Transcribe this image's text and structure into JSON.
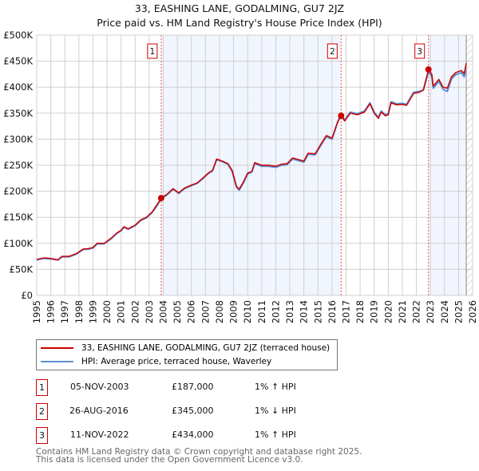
{
  "title": "33, EASHING LANE, GODALMING, GU7 2JZ",
  "subtitle": "Price paid vs. HM Land Registry's House Price Index (HPI)",
  "chart_data": {
    "type": "line",
    "title": "33, EASHING LANE, GODALMING, GU7 2JZ",
    "subtitle": "Price paid vs. HM Land Registry's House Price Index (HPI)",
    "xlim": [
      1995,
      2026
    ],
    "ylim": [
      0,
      500000
    ],
    "x_ticks": [
      "1995",
      "1996",
      "1997",
      "1998",
      "1999",
      "2000",
      "2001",
      "2002",
      "2003",
      "2004",
      "2005",
      "2006",
      "2007",
      "2008",
      "2009",
      "2010",
      "2011",
      "2012",
      "2013",
      "2014",
      "2015",
      "2016",
      "2017",
      "2018",
      "2019",
      "2020",
      "2021",
      "2022",
      "2023",
      "2024",
      "2025",
      "2026"
    ],
    "y_ticks": [
      {
        "v": 0,
        "label": "£0"
      },
      {
        "v": 50000,
        "label": "£50K"
      },
      {
        "v": 100000,
        "label": "£100K"
      },
      {
        "v": 150000,
        "label": "£150K"
      },
      {
        "v": 200000,
        "label": "£200K"
      },
      {
        "v": 250000,
        "label": "£250K"
      },
      {
        "v": 300000,
        "label": "£300K"
      },
      {
        "v": 350000,
        "label": "£350K"
      },
      {
        "v": 400000,
        "label": "£400K"
      },
      {
        "v": 450000,
        "label": "£450K"
      },
      {
        "v": 500000,
        "label": "£500K"
      }
    ],
    "grid": true,
    "series": [
      {
        "name": "33, EASHING LANE, GODALMING, GU7 2JZ (terraced house)",
        "color": "#cc0000",
        "points": [
          [
            1995.0,
            69
          ],
          [
            1995.5,
            72
          ],
          [
            1996,
            71
          ],
          [
            1996.5,
            68
          ],
          [
            1996.8,
            75
          ],
          [
            1997.3,
            75
          ],
          [
            1997.8,
            80
          ],
          [
            1998.3,
            89
          ],
          [
            1998.7,
            90
          ],
          [
            1999,
            92
          ],
          [
            1999.3,
            100
          ],
          [
            1999.8,
            100
          ],
          [
            2000.3,
            110
          ],
          [
            2000.7,
            120
          ],
          [
            2001,
            125
          ],
          [
            2001.2,
            132
          ],
          [
            2001.5,
            128
          ],
          [
            2002,
            135
          ],
          [
            2002.4,
            145
          ],
          [
            2002.8,
            150
          ],
          [
            2003.2,
            160
          ],
          [
            2003.5,
            172
          ],
          [
            2003.85,
            187
          ],
          [
            2004.3,
            195
          ],
          [
            2004.7,
            205
          ],
          [
            2005.1,
            197
          ],
          [
            2005.5,
            206
          ],
          [
            2006,
            212
          ],
          [
            2006.4,
            216
          ],
          [
            2006.8,
            225
          ],
          [
            2007.2,
            235
          ],
          [
            2007.5,
            240
          ],
          [
            2007.8,
            262
          ],
          [
            2008.2,
            258
          ],
          [
            2008.6,
            253
          ],
          [
            2008.9,
            240
          ],
          [
            2009.2,
            210
          ],
          [
            2009.4,
            204
          ],
          [
            2009.7,
            218
          ],
          [
            2010,
            235
          ],
          [
            2010.3,
            238
          ],
          [
            2010.5,
            255
          ],
          [
            2011,
            250
          ],
          [
            2011.5,
            250
          ],
          [
            2012,
            248
          ],
          [
            2012.4,
            252
          ],
          [
            2012.8,
            253
          ],
          [
            2013.2,
            264
          ],
          [
            2013.6,
            261
          ],
          [
            2014,
            258
          ],
          [
            2014.3,
            273
          ],
          [
            2014.8,
            272
          ],
          [
            2015.2,
            290
          ],
          [
            2015.6,
            307
          ],
          [
            2016,
            302
          ],
          [
            2016.4,
            333
          ],
          [
            2016.65,
            345
          ],
          [
            2016.9,
            335
          ],
          [
            2017.3,
            350
          ],
          [
            2017.8,
            347
          ],
          [
            2018.3,
            352
          ],
          [
            2018.7,
            368
          ],
          [
            2019,
            350
          ],
          [
            2019.3,
            340
          ],
          [
            2019.5,
            352
          ],
          [
            2019.8,
            345
          ],
          [
            2020,
            347
          ],
          [
            2020.2,
            370
          ],
          [
            2020.6,
            366
          ],
          [
            2021,
            367
          ],
          [
            2021.3,
            365
          ],
          [
            2021.8,
            388
          ],
          [
            2022.2,
            390
          ],
          [
            2022.5,
            395
          ],
          [
            2022.86,
            434
          ],
          [
            2023.1,
            425
          ],
          [
            2023.2,
            402
          ],
          [
            2023.6,
            415
          ],
          [
            2023.9,
            400
          ],
          [
            2024.2,
            398
          ],
          [
            2024.5,
            420
          ],
          [
            2024.8,
            428
          ],
          [
            2025.2,
            432
          ],
          [
            2025.4,
            426
          ],
          [
            2025.55,
            446
          ]
        ]
      },
      {
        "name": "HPI: Average price, terraced house, Waverley",
        "color": "#5b8fd6",
        "points": [
          [
            1995.0,
            68
          ],
          [
            1995.5,
            71
          ],
          [
            1996,
            70
          ],
          [
            1996.5,
            68
          ],
          [
            1996.8,
            74
          ],
          [
            1997.3,
            74
          ],
          [
            1997.8,
            79
          ],
          [
            1998.3,
            88
          ],
          [
            1998.7,
            89
          ],
          [
            1999,
            91
          ],
          [
            1999.3,
            99
          ],
          [
            1999.8,
            99
          ],
          [
            2000.3,
            109
          ],
          [
            2000.7,
            119
          ],
          [
            2001,
            124
          ],
          [
            2001.2,
            131
          ],
          [
            2001.5,
            127
          ],
          [
            2002,
            134
          ],
          [
            2002.4,
            144
          ],
          [
            2002.8,
            149
          ],
          [
            2003.2,
            159
          ],
          [
            2003.5,
            170
          ],
          [
            2003.85,
            185
          ],
          [
            2004.3,
            194
          ],
          [
            2004.7,
            204
          ],
          [
            2005.1,
            196
          ],
          [
            2005.5,
            205
          ],
          [
            2006,
            211
          ],
          [
            2006.4,
            215
          ],
          [
            2006.8,
            224
          ],
          [
            2007.2,
            234
          ],
          [
            2007.5,
            239
          ],
          [
            2007.8,
            261
          ],
          [
            2008.2,
            257
          ],
          [
            2008.6,
            252
          ],
          [
            2008.9,
            238
          ],
          [
            2009.2,
            208
          ],
          [
            2009.4,
            202
          ],
          [
            2009.7,
            216
          ],
          [
            2010,
            233
          ],
          [
            2010.3,
            237
          ],
          [
            2010.5,
            253
          ],
          [
            2011,
            248
          ],
          [
            2011.5,
            248
          ],
          [
            2012,
            246
          ],
          [
            2012.4,
            250
          ],
          [
            2012.8,
            251
          ],
          [
            2013.2,
            262
          ],
          [
            2013.6,
            259
          ],
          [
            2014,
            256
          ],
          [
            2014.3,
            271
          ],
          [
            2014.8,
            270
          ],
          [
            2015.2,
            288
          ],
          [
            2015.6,
            305
          ],
          [
            2016,
            300
          ],
          [
            2016.4,
            333
          ],
          [
            2016.65,
            348
          ],
          [
            2016.9,
            337
          ],
          [
            2017.3,
            352
          ],
          [
            2017.8,
            349
          ],
          [
            2018.3,
            354
          ],
          [
            2018.7,
            370
          ],
          [
            2019,
            352
          ],
          [
            2019.3,
            342
          ],
          [
            2019.5,
            354
          ],
          [
            2019.8,
            347
          ],
          [
            2020,
            349
          ],
          [
            2020.2,
            372
          ],
          [
            2020.6,
            368
          ],
          [
            2021,
            369
          ],
          [
            2021.3,
            367
          ],
          [
            2021.8,
            390
          ],
          [
            2022.2,
            392
          ],
          [
            2022.5,
            394
          ],
          [
            2022.86,
            430
          ],
          [
            2023.1,
            420
          ],
          [
            2023.2,
            398
          ],
          [
            2023.6,
            411
          ],
          [
            2023.9,
            396
          ],
          [
            2024.2,
            392
          ],
          [
            2024.5,
            416
          ],
          [
            2024.8,
            424
          ],
          [
            2025.2,
            428
          ],
          [
            2025.4,
            420
          ],
          [
            2025.55,
            432
          ]
        ]
      }
    ],
    "sales": [
      {
        "id": "1",
        "x": 2003.85,
        "value": 187000
      },
      {
        "id": "2",
        "x": 2016.65,
        "value": 345000
      },
      {
        "id": "3",
        "x": 2022.86,
        "value": 434000
      }
    ],
    "forecast_start": 2025.55,
    "legend_position": "bottom"
  },
  "legend": [
    {
      "label": "33, EASHING LANE, GODALMING, GU7 2JZ (terraced house)",
      "color": "#cc0000"
    },
    {
      "label": "HPI: Average price, terraced house, Waverley",
      "color": "#5b8fd6"
    }
  ],
  "transactions": [
    {
      "num": "1",
      "date": "05-NOV-2003",
      "price": "£187,000",
      "hpi": "1% ↑ HPI"
    },
    {
      "num": "2",
      "date": "26-AUG-2016",
      "price": "£345,000",
      "hpi": "1% ↓ HPI"
    },
    {
      "num": "3",
      "date": "11-NOV-2022",
      "price": "£434,000",
      "hpi": "1% ↑ HPI"
    }
  ],
  "footer": {
    "line1": "Contains HM Land Registry data © Crown copyright and database right 2025.",
    "line2": "This data is licensed under the Open Government Licence v3.0."
  }
}
